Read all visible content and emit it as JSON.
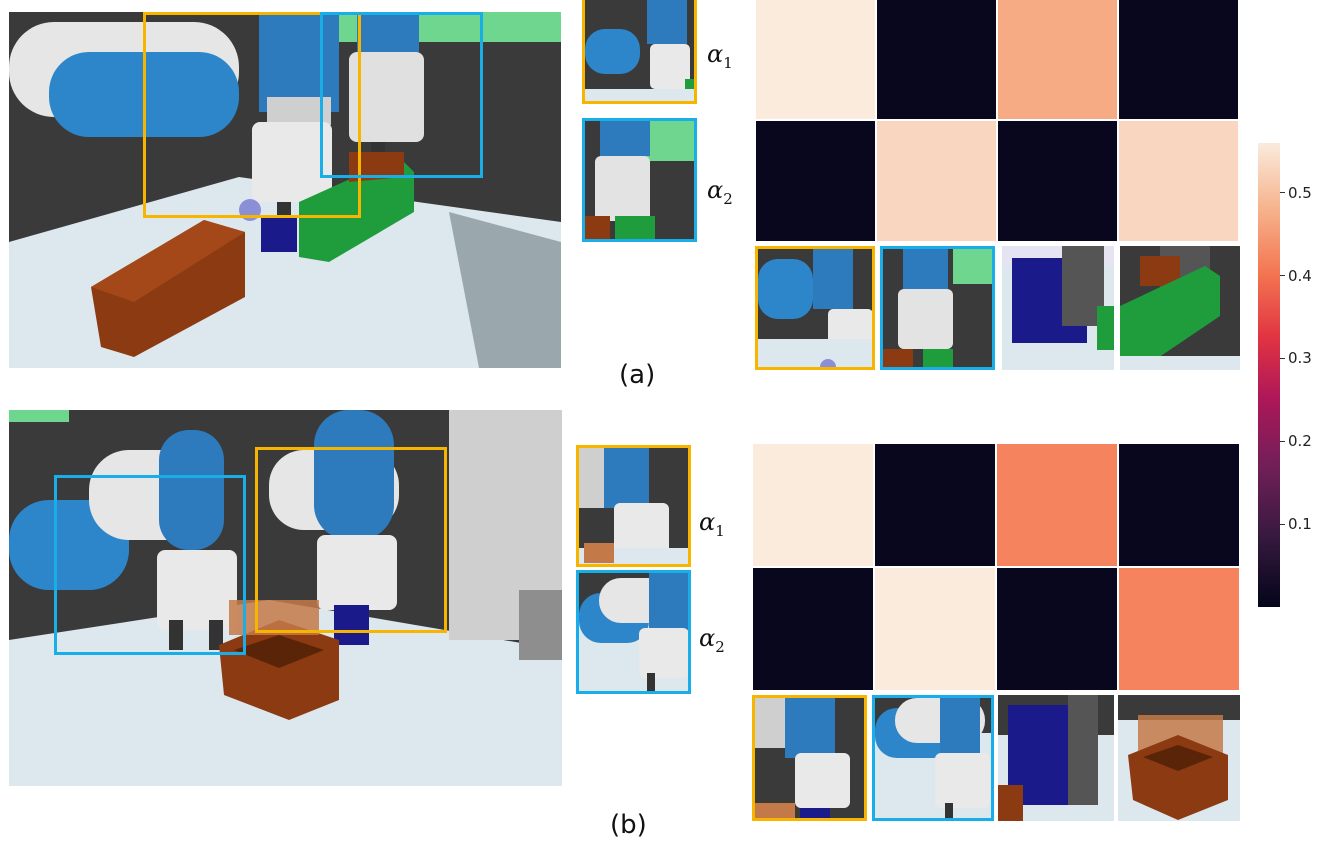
{
  "panels": [
    {
      "label": "(a)",
      "alpha_labels": [
        "α1",
        "α2"
      ],
      "heatmap": [
        [
          0.56,
          0.01,
          0.47,
          0.01
        ],
        [
          0.01,
          0.53,
          0.01,
          0.53
        ]
      ],
      "crop_order": [
        "orange",
        "blue"
      ],
      "patch_borders": [
        "orange",
        "blue",
        "none",
        "none"
      ]
    },
    {
      "label": "(b)",
      "alpha_labels": [
        "α1",
        "α2"
      ],
      "heatmap": [
        [
          0.56,
          0.01,
          0.42,
          0.01
        ],
        [
          0.01,
          0.56,
          0.01,
          0.42
        ]
      ],
      "crop_order": [
        "orange",
        "blue"
      ],
      "patch_borders": [
        "orange",
        "blue",
        "none",
        "none"
      ]
    }
  ],
  "colorbar": {
    "ticks": [
      "0.5",
      "0.4",
      "0.3",
      "0.2",
      "0.1"
    ],
    "min": 0.0,
    "max": 0.56,
    "colormap": "rocket"
  },
  "colors": {
    "orange": "#f7b500",
    "blue": "#1aaee8",
    "robot_blue": "#2d7bbd",
    "robot_white": "#e8e8e8",
    "table": "#dfe9ee",
    "dark_bg": "#3c3c3c",
    "green_block": "#1f9d3c",
    "wood": "#8b3a12",
    "navy_block": "#1a1a8a"
  }
}
